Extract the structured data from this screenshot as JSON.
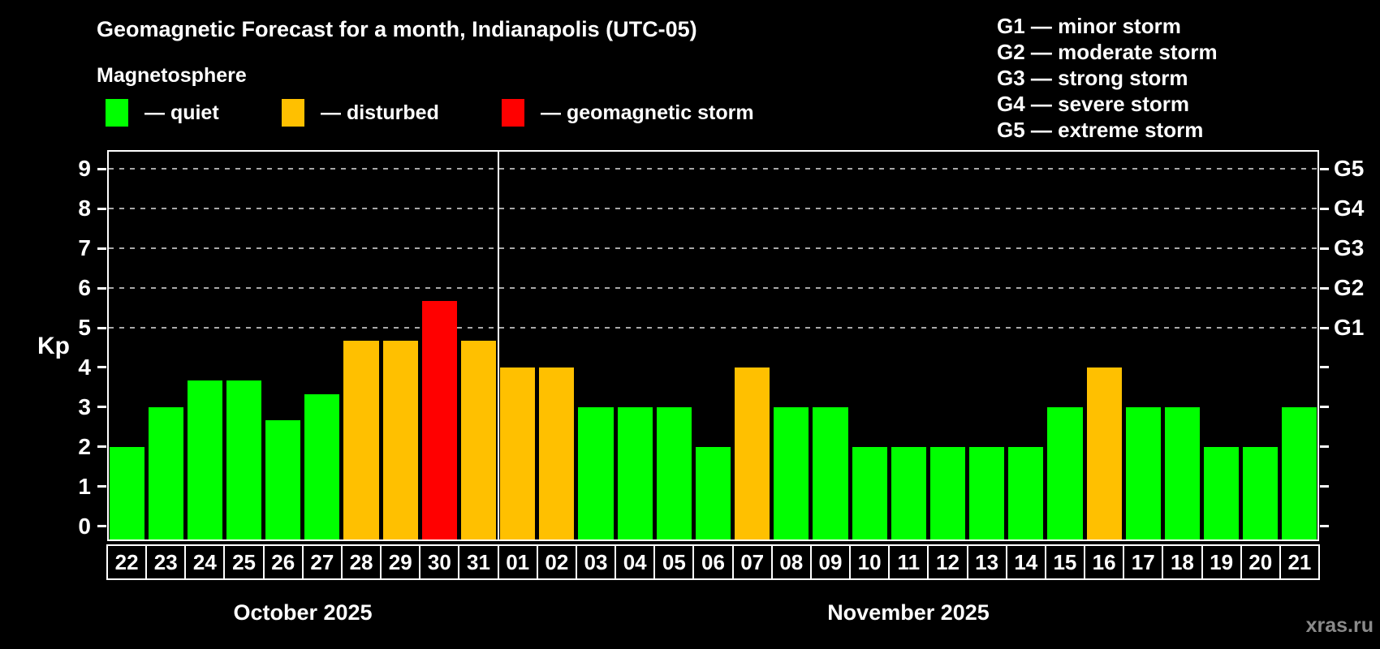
{
  "header": {
    "title": "Geomagnetic Forecast for a month, Indianapolis (UTC-05)",
    "subtitle": "Magnetosphere",
    "legend": [
      {
        "key": "quiet",
        "label": "— quiet",
        "color": "#00ff00"
      },
      {
        "key": "disturbed",
        "label": "— disturbed",
        "color": "#ffc000"
      },
      {
        "key": "storm",
        "label": "— geomagnetic storm",
        "color": "#ff0000"
      }
    ],
    "g_legend": [
      "G1 — minor storm",
      "G2 — moderate storm",
      "G3 — strong storm",
      "G4 — severe storm",
      "G5 — extreme storm"
    ]
  },
  "chart_data": {
    "type": "bar",
    "title": "Geomagnetic Forecast for a month, Indianapolis (UTC-05)",
    "ylabel": "Kp",
    "ylim": [
      0,
      9
    ],
    "yticks": [
      0,
      1,
      2,
      3,
      4,
      5,
      6,
      7,
      8,
      9
    ],
    "gridlines_at_kp": [
      5,
      6,
      7,
      8,
      9
    ],
    "grid": "dashed horizontal at G-storm levels only",
    "legend_position": "top",
    "right_axis": [
      {
        "label": "G1",
        "kp": 5
      },
      {
        "label": "G2",
        "kp": 6
      },
      {
        "label": "G3",
        "kp": 7
      },
      {
        "label": "G4",
        "kp": 8
      },
      {
        "label": "G5",
        "kp": 9
      }
    ],
    "months": [
      {
        "label": "October 2025",
        "days_count": 10
      },
      {
        "label": "November 2025",
        "days_count": 21
      }
    ],
    "categories": [
      "22",
      "23",
      "24",
      "25",
      "26",
      "27",
      "28",
      "29",
      "30",
      "31",
      "01",
      "02",
      "03",
      "04",
      "05",
      "06",
      "07",
      "08",
      "09",
      "10",
      "11",
      "12",
      "13",
      "14",
      "15",
      "16",
      "17",
      "18",
      "19",
      "20",
      "21"
    ],
    "series": [
      {
        "name": "Kp forecast",
        "values": [
          2.0,
          3.0,
          3.67,
          3.67,
          2.67,
          3.33,
          4.67,
          4.67,
          5.67,
          4.67,
          4.0,
          4.0,
          3.0,
          3.0,
          3.0,
          2.0,
          4.0,
          3.0,
          3.0,
          2.0,
          2.0,
          2.0,
          2.0,
          2.0,
          3.0,
          4.0,
          3.0,
          3.0,
          2.0,
          2.0,
          3.0
        ]
      }
    ],
    "statuses": [
      "quiet",
      "quiet",
      "quiet",
      "quiet",
      "quiet",
      "quiet",
      "disturbed",
      "disturbed",
      "storm",
      "disturbed",
      "disturbed",
      "disturbed",
      "quiet",
      "quiet",
      "quiet",
      "quiet",
      "disturbed",
      "quiet",
      "quiet",
      "quiet",
      "quiet",
      "quiet",
      "quiet",
      "quiet",
      "quiet",
      "disturbed",
      "quiet",
      "quiet",
      "quiet",
      "quiet",
      "quiet"
    ],
    "status_colors": {
      "quiet": "#00ff00",
      "disturbed": "#ffc000",
      "storm": "#ff0000"
    }
  },
  "watermark": "xras.ru"
}
